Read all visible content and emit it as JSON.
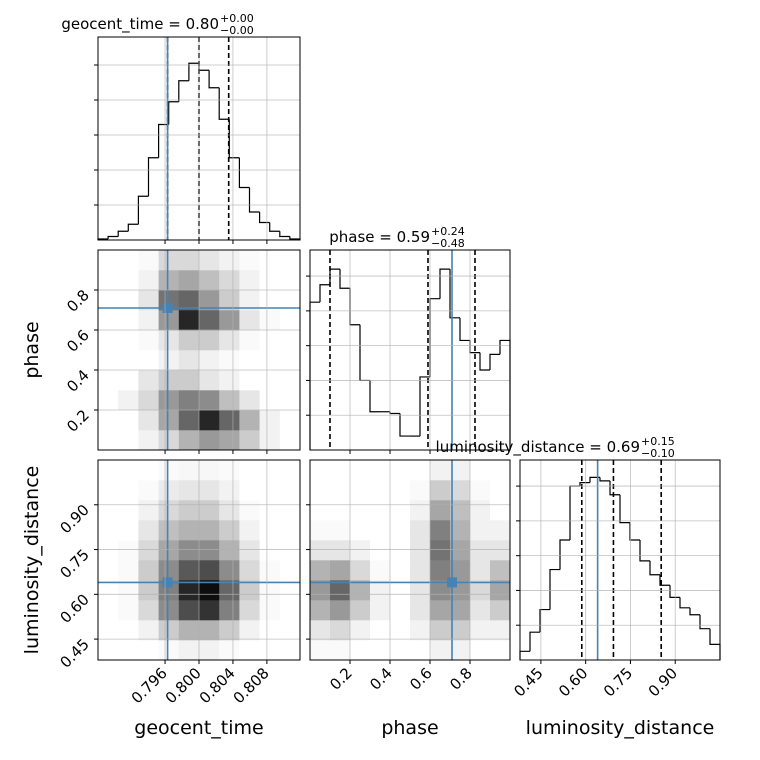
{
  "chart_data": [
    {
      "type": "histogram",
      "title": {
        "text": "geocent_time = 0.80",
        "upper": "+0.00",
        "lower": "−0.00"
      },
      "bins": [
        0.7881,
        0.78929,
        0.79048,
        0.79167,
        0.79286,
        0.79405,
        0.79524,
        0.79643,
        0.79762,
        0.79881,
        0.8,
        0.80119,
        0.80238,
        0.80357,
        0.80476,
        0.80595,
        0.80714,
        0.80833,
        0.80952,
        0.81071,
        0.8119
      ],
      "values": [
        0.006,
        0.02,
        0.05,
        0.09,
        0.25,
        0.47,
        0.66,
        0.79,
        0.91,
        1.01,
        0.97,
        0.87,
        0.69,
        0.47,
        0.3,
        0.16,
        0.1,
        0.05,
        0.02,
        0.006
      ],
      "quantiles": [
        0.7963,
        0.8,
        0.8035
      ],
      "truth": 0.7963,
      "xlim": [
        0.7881,
        0.8119
      ],
      "ylim": [
        0,
        1.16
      ],
      "xticks": [
        0.796,
        0.8,
        0.804,
        0.808
      ],
      "yticks": [
        0.2,
        0.4,
        0.6,
        0.8,
        1.0
      ],
      "xtick_labels": false,
      "ytick_labels": false,
      "grid": true,
      "color": "#000000",
      "truth_color": "#4682b4"
    },
    {
      "type": "hist2d",
      "ylabel": "phase",
      "xlim": [
        0.7881,
        0.8119
      ],
      "ylim": [
        0,
        1
      ],
      "xticks": [
        0.796,
        0.8,
        0.804,
        0.808
      ],
      "yticks": [
        0.2,
        0.4,
        0.6,
        0.8
      ],
      "xtick_labels": false,
      "ytick_labels": true,
      "grid": true,
      "z": [
        [
          0,
          0,
          0.05,
          0.15,
          0.3,
          0.4,
          0.35,
          0.2,
          0.05,
          0
        ],
        [
          0,
          0,
          0.1,
          0.35,
          0.6,
          0.85,
          0.6,
          0.3,
          0.05,
          0
        ],
        [
          0,
          0.05,
          0.15,
          0.4,
          0.5,
          0.45,
          0.25,
          0.1,
          0,
          0
        ],
        [
          0,
          0,
          0.1,
          0.2,
          0.2,
          0.1,
          0.05,
          0,
          0,
          0
        ],
        [
          0,
          0,
          0,
          0.05,
          0.1,
          0.05,
          0.02,
          0,
          0,
          0
        ],
        [
          0,
          0,
          0.02,
          0.1,
          0.2,
          0.2,
          0.1,
          0.02,
          0,
          0
        ],
        [
          0,
          0,
          0.05,
          0.4,
          0.85,
          0.6,
          0.4,
          0.1,
          0.02,
          0
        ],
        [
          0,
          0,
          0.1,
          0.55,
          0.6,
          0.4,
          0.2,
          0.05,
          0,
          0
        ],
        [
          0,
          0,
          0.05,
          0.3,
          0.35,
          0.25,
          0.15,
          0.05,
          0,
          0
        ],
        [
          0,
          0,
          0.02,
          0.15,
          0.15,
          0.1,
          0.05,
          0.02,
          0,
          0
        ]
      ],
      "truth": [
        0.7963,
        0.71
      ],
      "color": "#000000",
      "truth_color": "#4682b4"
    },
    {
      "type": "histogram",
      "title": {
        "text": "phase = 0.59",
        "upper": "+0.24",
        "lower": "−0.48"
      },
      "bins": [
        0,
        0.05,
        0.1,
        0.15,
        0.2,
        0.25,
        0.3,
        0.35,
        0.4,
        0.45,
        0.5,
        0.55,
        0.6,
        0.65,
        0.7,
        0.75,
        0.8,
        0.85,
        0.9,
        0.95,
        1.0
      ],
      "values": [
        0.85,
        0.95,
        1.04,
        0.93,
        0.72,
        0.4,
        0.22,
        0.22,
        0.21,
        0.08,
        0.08,
        0.42,
        0.87,
        1.04,
        0.76,
        0.63,
        0.56,
        0.46,
        0.55,
        0.63
      ],
      "quantiles": [
        0.1,
        0.59,
        0.825
      ],
      "truth": 0.71,
      "xlim": [
        0,
        1
      ],
      "ylim": [
        0,
        1.15
      ],
      "xticks": [
        0.2,
        0.4,
        0.6,
        0.8
      ],
      "yticks": [
        0.2,
        0.4,
        0.6,
        0.8,
        1.0
      ],
      "xtick_labels": false,
      "ytick_labels": false,
      "grid": true,
      "color": "#000000",
      "truth_color": "#4682b4"
    },
    {
      "type": "hist2d",
      "xlabel": "geocent_time",
      "ylabel": "luminosity_distance",
      "xlim": [
        0.7881,
        0.8119
      ],
      "ylim": [
        0.38,
        1.05
      ],
      "xticks": [
        0.796,
        {
          "value": 0.8,
          "label": "0.800"
        },
        0.804,
        0.808
      ],
      "yticks": [
        0.45,
        {
          "value": 0.6,
          "label": "0.60"
        },
        0.75,
        {
          "value": 0.9,
          "label": "0.90"
        }
      ],
      "xtick_labels": true,
      "ytick_labels": true,
      "grid": true,
      "z": [
        [
          0,
          0,
          0,
          0.02,
          0.05,
          0.05,
          0.02,
          0,
          0,
          0
        ],
        [
          0,
          0,
          0.05,
          0.2,
          0.3,
          0.3,
          0.2,
          0.05,
          0,
          0
        ],
        [
          0,
          0.02,
          0.15,
          0.45,
          0.7,
          0.8,
          0.5,
          0.15,
          0.02,
          0
        ],
        [
          0,
          0.02,
          0.2,
          0.5,
          0.85,
          0.95,
          0.6,
          0.2,
          0.02,
          0
        ],
        [
          0,
          0.02,
          0.2,
          0.45,
          0.65,
          0.7,
          0.45,
          0.15,
          0.02,
          0
        ],
        [
          0,
          0.02,
          0.15,
          0.35,
          0.45,
          0.45,
          0.3,
          0.1,
          0,
          0
        ],
        [
          0,
          0,
          0.1,
          0.25,
          0.3,
          0.3,
          0.2,
          0.05,
          0,
          0
        ],
        [
          0,
          0,
          0.05,
          0.15,
          0.2,
          0.2,
          0.1,
          0.02,
          0,
          0
        ],
        [
          0,
          0,
          0.02,
          0.08,
          0.1,
          0.1,
          0.05,
          0,
          0,
          0
        ],
        [
          0,
          0,
          0,
          0.02,
          0.03,
          0.03,
          0.02,
          0,
          0,
          0
        ]
      ],
      "truth": [
        0.7963,
        0.64
      ],
      "color": "#000000",
      "truth_color": "#4682b4"
    },
    {
      "type": "hist2d",
      "xlabel": "phase",
      "xlim": [
        0,
        1
      ],
      "ylim": [
        0.38,
        1.05
      ],
      "xticks": [
        0.2,
        0.4,
        0.6,
        0.8
      ],
      "yticks": [
        0.45,
        0.6,
        0.75,
        0.9
      ],
      "xtick_labels": true,
      "ytick_labels": false,
      "grid": true,
      "z": [
        [
          0.02,
          0.02,
          0,
          0,
          0,
          0,
          0.05,
          0.05,
          0,
          0
        ],
        [
          0.1,
          0.15,
          0.05,
          0,
          0,
          0.05,
          0.2,
          0.2,
          0.05,
          0.05
        ],
        [
          0.3,
          0.4,
          0.2,
          0.05,
          0,
          0.1,
          0.35,
          0.35,
          0.1,
          0.2
        ],
        [
          0.4,
          0.6,
          0.3,
          0.05,
          0,
          0.1,
          0.45,
          0.4,
          0.15,
          0.35
        ],
        [
          0.3,
          0.35,
          0.15,
          0.02,
          0,
          0.1,
          0.5,
          0.4,
          0.1,
          0.25
        ],
        [
          0.1,
          0.1,
          0.05,
          0,
          0,
          0.1,
          0.55,
          0.35,
          0.1,
          0.1
        ],
        [
          0.02,
          0.02,
          0,
          0,
          0,
          0.1,
          0.5,
          0.3,
          0.05,
          0.05
        ],
        [
          0,
          0,
          0,
          0,
          0,
          0.05,
          0.35,
          0.25,
          0.05,
          0
        ],
        [
          0,
          0,
          0,
          0,
          0,
          0.02,
          0.2,
          0.15,
          0.02,
          0
        ],
        [
          0,
          0,
          0,
          0,
          0,
          0,
          0.05,
          0.05,
          0,
          0
        ]
      ],
      "truth": [
        0.71,
        0.64
      ],
      "color": "#000000",
      "truth_color": "#4682b4"
    },
    {
      "type": "histogram",
      "title": {
        "text": "luminosity_distance = 0.69",
        "upper": "+0.15",
        "lower": "−0.10"
      },
      "xlabel": "luminosity_distance",
      "bins": [
        0.38,
        0.4135,
        0.447,
        0.4805,
        0.514,
        0.5475,
        0.581,
        0.6145,
        0.648,
        0.6815,
        0.715,
        0.7485,
        0.782,
        0.8155,
        0.849,
        0.8825,
        0.916,
        0.9495,
        0.983,
        1.0165,
        1.05
      ],
      "values": [
        0.05,
        0.16,
        0.29,
        0.52,
        0.69,
        1.0,
        1.02,
        1.05,
        1.03,
        0.95,
        0.79,
        0.69,
        0.57,
        0.49,
        0.43,
        0.36,
        0.3,
        0.26,
        0.18,
        0.09
      ],
      "quantiles": [
        0.587,
        0.693,
        0.853
      ],
      "truth": 0.64,
      "xlim": [
        0.38,
        1.05
      ],
      "ylim": [
        0,
        1.15
      ],
      "xticks": [
        0.45,
        {
          "value": 0.6,
          "label": "0.60"
        },
        0.75,
        {
          "value": 0.9,
          "label": "0.90"
        }
      ],
      "yticks": [
        0.2,
        0.4,
        0.6,
        0.8,
        1.0
      ],
      "xtick_labels": true,
      "ytick_labels": false,
      "grid": true,
      "color": "#000000",
      "truth_color": "#4682b4"
    }
  ]
}
